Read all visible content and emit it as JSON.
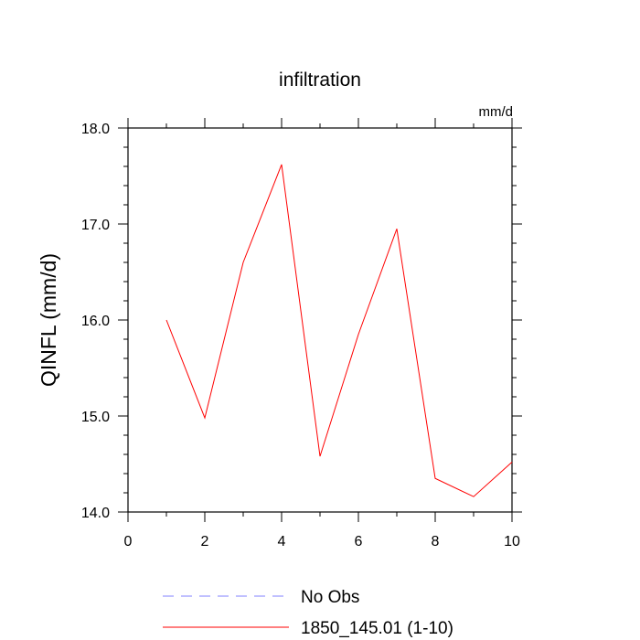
{
  "chart_data": {
    "type": "line",
    "title": "infiltration",
    "units_label": "mm/d",
    "ylabel": "QINFL  (mm/d)",
    "xlabel": "",
    "xlim": [
      0,
      10
    ],
    "ylim": [
      14.0,
      18.0
    ],
    "x_ticks": [
      0,
      2,
      4,
      6,
      8,
      10
    ],
    "x_tick_labels": [
      "0",
      "2",
      "4",
      "6",
      "8",
      "10"
    ],
    "y_ticks": [
      14.0,
      15.0,
      16.0,
      17.0,
      18.0
    ],
    "y_tick_labels": [
      "14.0",
      "15.0",
      "16.0",
      "17.0",
      "18.0"
    ],
    "grid": false,
    "legend_position": "bottom",
    "series": [
      {
        "name": "No Obs",
        "color": "#8080ff",
        "dash": "dashed",
        "x": [],
        "y": []
      },
      {
        "name": "1850_145.01 (1-10)",
        "color": "#ff0000",
        "dash": "solid",
        "x": [
          1,
          2,
          3,
          4,
          5,
          6,
          7,
          8,
          9,
          10
        ],
        "y": [
          16.0,
          14.98,
          16.6,
          17.62,
          14.58,
          15.85,
          16.95,
          14.35,
          14.16,
          14.52
        ]
      }
    ]
  }
}
